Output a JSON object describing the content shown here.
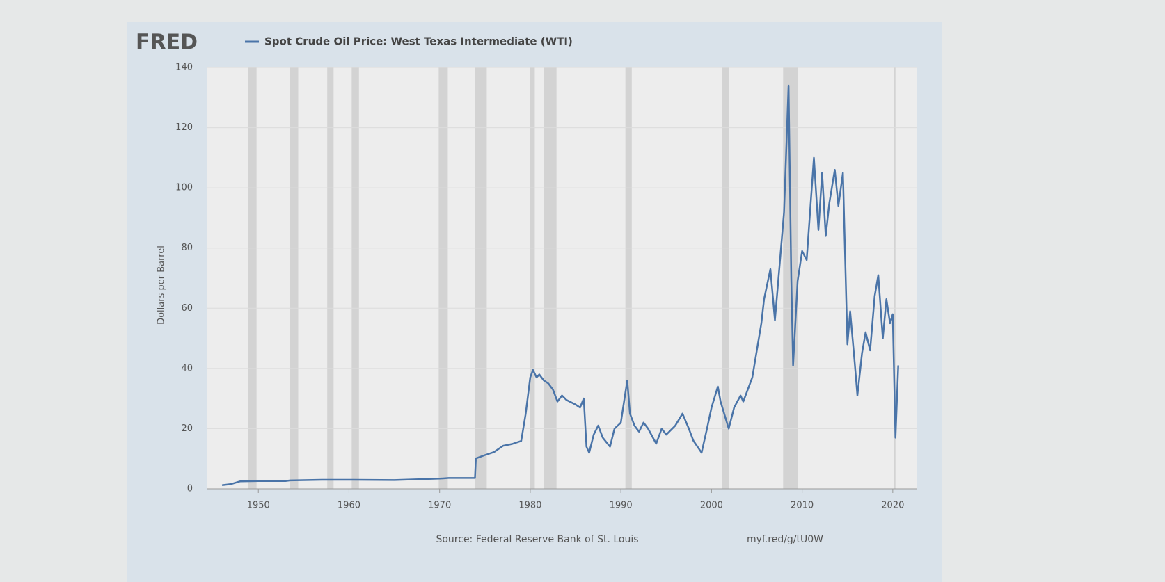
{
  "chart_data": {
    "type": "line",
    "brand": "FRED",
    "ylabel": "Dollars per Barrel",
    "source": "Source: Federal Reserve Bank of St. Louis",
    "link": "myf.red/g/tU0W",
    "x": [
      1946.0,
      1947.0,
      1948.0,
      1950.0,
      1953.0,
      1953.5,
      1957.0,
      1960.0,
      1965.0,
      1970.0,
      1971.0,
      1973.9,
      1974.0,
      1975.0,
      1976.0,
      1977.0,
      1978.0,
      1979.0,
      1979.5,
      1980.0,
      1980.3,
      1980.7,
      1981.0,
      1981.5,
      1982.0,
      1982.5,
      1983.0,
      1983.5,
      1984.0,
      1985.0,
      1985.5,
      1985.9,
      1986.2,
      1986.5,
      1987.0,
      1987.5,
      1988.0,
      1988.8,
      1989.3,
      1990.0,
      1990.7,
      1991.0,
      1991.5,
      1992.0,
      1992.5,
      1993.0,
      1993.9,
      1994.5,
      1995.0,
      1996.0,
      1996.8,
      1997.5,
      1998.0,
      1998.9,
      1999.5,
      2000.0,
      2000.7,
      2001.0,
      2001.9,
      2002.5,
      2003.2,
      2003.5,
      2004.5,
      2005.5,
      2005.8,
      2006.5,
      2007.0,
      2007.5,
      2008.0,
      2008.5,
      2008.8,
      2009.0,
      2009.5,
      2010.0,
      2010.5,
      2011.3,
      2011.8,
      2012.2,
      2012.6,
      2013.0,
      2013.6,
      2014.0,
      2014.5,
      2015.0,
      2015.3,
      2015.8,
      2016.1,
      2016.6,
      2017.0,
      2017.5,
      2018.0,
      2018.4,
      2018.9,
      2019.3,
      2019.7,
      2020.0,
      2020.3,
      2020.6
    ],
    "series": [
      {
        "name": "Spot Crude Oil Price: West Texas Intermediate (WTI)",
        "color": "#4a74a8",
        "values": [
          1.2,
          1.6,
          2.5,
          2.6,
          2.6,
          2.8,
          3.0,
          3.0,
          2.9,
          3.4,
          3.6,
          3.6,
          10.1,
          11.2,
          12.2,
          14.3,
          14.9,
          15.9,
          25,
          37.0,
          39.5,
          37,
          38,
          36,
          35,
          33,
          29,
          31,
          29.5,
          28,
          27,
          30,
          14,
          12,
          18,
          21,
          17,
          14,
          20,
          22,
          36,
          25,
          21,
          19,
          22,
          20,
          15,
          20,
          18,
          21,
          25,
          20,
          16,
          12,
          20,
          27,
          34,
          29,
          20,
          27,
          31,
          29,
          37,
          55,
          63,
          73,
          56,
          74,
          92,
          134,
          70,
          41,
          69,
          79,
          76,
          110,
          86,
          105,
          84,
          95,
          106,
          94,
          105,
          48,
          59,
          42,
          31,
          45,
          52,
          46,
          64,
          71,
          50,
          63,
          55,
          58,
          17,
          41
        ]
      }
    ],
    "recessions": [
      [
        1948.9,
        1949.8
      ],
      [
        1953.5,
        1954.4
      ],
      [
        1957.6,
        1958.3
      ],
      [
        1960.3,
        1961.1
      ],
      [
        1969.9,
        1970.9
      ],
      [
        1973.9,
        1975.2
      ],
      [
        1980.0,
        1980.5
      ],
      [
        1981.5,
        1982.9
      ],
      [
        1990.5,
        1991.2
      ],
      [
        2001.2,
        2001.9
      ],
      [
        2007.9,
        2009.5
      ],
      [
        2020.1,
        2020.3
      ]
    ],
    "xlim": [
      1944.3,
      2022.7
    ],
    "xticks": [
      1950,
      1960,
      1970,
      1980,
      1990,
      2000,
      2010,
      2020
    ],
    "ylim": [
      0,
      140
    ],
    "yticks": [
      0,
      20,
      40,
      60,
      80,
      100,
      120,
      140
    ],
    "grid": true
  }
}
